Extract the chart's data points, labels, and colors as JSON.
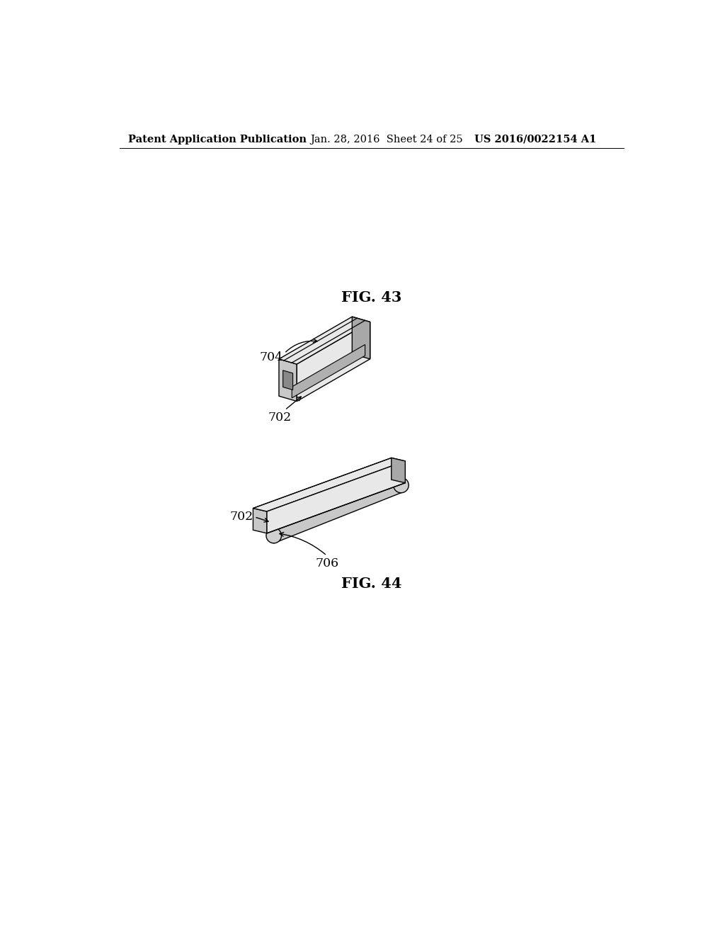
{
  "background_color": "#ffffff",
  "header_left": "Patent Application Publication",
  "header_center": "Jan. 28, 2016  Sheet 24 of 25",
  "header_right": "US 2016/0022154 A1",
  "header_fontsize": 10.5,
  "fig43_title": "FIG. 43",
  "fig44_title": "FIG. 44",
  "fig_title_fontsize": 15,
  "label_fontsize": 12.5,
  "label_704": "704",
  "label_702_fig43": "702",
  "label_702_fig44": "702",
  "label_706": "706",
  "gray_light": "#e8e8e8",
  "gray_mid": "#c8c8c8",
  "gray_dark": "#a8a8a8",
  "gray_groove": "#b0b0b0",
  "line_color": "#000000",
  "lw": 1.0
}
